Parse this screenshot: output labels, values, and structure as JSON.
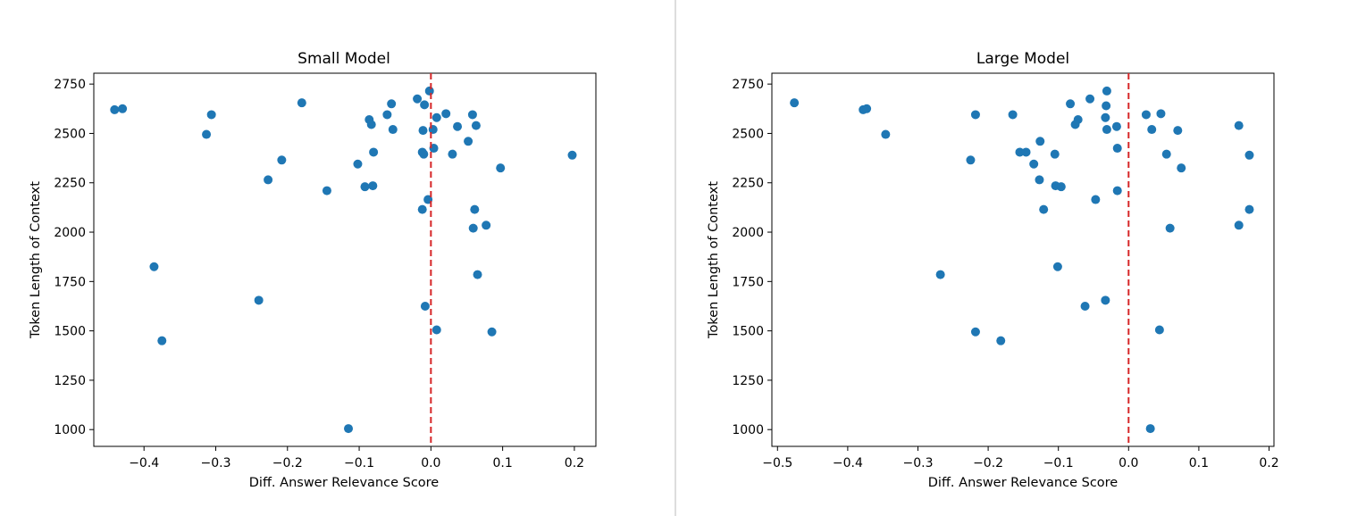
{
  "chart_data": [
    {
      "type": "scatter",
      "title": "Small Model",
      "xlabel": "Diff. Answer Relevance Score",
      "ylabel": "Token Length of Context",
      "xlim": [
        -0.47,
        0.23
      ],
      "ylim": [
        915,
        2805
      ],
      "xticks": [
        -0.4,
        -0.3,
        -0.2,
        -0.1,
        0.0,
        0.1,
        0.2
      ],
      "xtick_labels": [
        "−0.4",
        "−0.3",
        "−0.2",
        "−0.1",
        "0.0",
        "0.1",
        "0.2"
      ],
      "yticks": [
        1000,
        1250,
        1500,
        1750,
        2000,
        2250,
        2500,
        2750
      ],
      "ytick_labels": [
        "1000",
        "1250",
        "1500",
        "1750",
        "2000",
        "2250",
        "2500",
        "2750"
      ],
      "grid": false,
      "marker_color": "#1f77b4",
      "reference_line": {
        "x": 0,
        "color": "#d62728",
        "style": "dashed"
      },
      "points": [
        {
          "x": -0.441,
          "y": 2620
        },
        {
          "x": -0.43,
          "y": 2625
        },
        {
          "x": -0.306,
          "y": 2595
        },
        {
          "x": -0.313,
          "y": 2495
        },
        {
          "x": -0.18,
          "y": 2655
        },
        {
          "x": -0.208,
          "y": 2365
        },
        {
          "x": -0.227,
          "y": 2265
        },
        {
          "x": -0.145,
          "y": 2210
        },
        {
          "x": -0.386,
          "y": 1825
        },
        {
          "x": -0.375,
          "y": 1450
        },
        {
          "x": -0.24,
          "y": 1655
        },
        {
          "x": -0.115,
          "y": 1005
        },
        {
          "x": -0.102,
          "y": 2345
        },
        {
          "x": -0.092,
          "y": 2230
        },
        {
          "x": -0.081,
          "y": 2235
        },
        {
          "x": -0.086,
          "y": 2570
        },
        {
          "x": -0.083,
          "y": 2545
        },
        {
          "x": -0.08,
          "y": 2405
        },
        {
          "x": -0.061,
          "y": 2595
        },
        {
          "x": -0.055,
          "y": 2650
        },
        {
          "x": -0.053,
          "y": 2520
        },
        {
          "x": -0.019,
          "y": 2675
        },
        {
          "x": -0.009,
          "y": 2645
        },
        {
          "x": -0.002,
          "y": 2715
        },
        {
          "x": -0.011,
          "y": 2515
        },
        {
          "x": 0.003,
          "y": 2520
        },
        {
          "x": -0.012,
          "y": 2405
        },
        {
          "x": -0.01,
          "y": 2395
        },
        {
          "x": 0.004,
          "y": 2425
        },
        {
          "x": -0.004,
          "y": 2165
        },
        {
          "x": -0.012,
          "y": 2115
        },
        {
          "x": 0.008,
          "y": 2580
        },
        {
          "x": 0.021,
          "y": 2600
        },
        {
          "x": 0.037,
          "y": 2535
        },
        {
          "x": 0.058,
          "y": 2595
        },
        {
          "x": 0.063,
          "y": 2540
        },
        {
          "x": 0.052,
          "y": 2460
        },
        {
          "x": 0.03,
          "y": 2395
        },
        {
          "x": 0.097,
          "y": 2325
        },
        {
          "x": 0.197,
          "y": 2390
        },
        {
          "x": 0.061,
          "y": 2115
        },
        {
          "x": 0.059,
          "y": 2020
        },
        {
          "x": 0.077,
          "y": 2035
        },
        {
          "x": 0.065,
          "y": 1785
        },
        {
          "x": -0.008,
          "y": 1625
        },
        {
          "x": 0.008,
          "y": 1505
        },
        {
          "x": 0.085,
          "y": 1495
        }
      ]
    },
    {
      "type": "scatter",
      "title": "Large Model",
      "xlabel": "Diff. Answer Relevance Score",
      "ylabel": "Token Length of Context",
      "xlim": [
        -0.508,
        0.207
      ],
      "ylim": [
        915,
        2805
      ],
      "xticks": [
        -0.5,
        -0.4,
        -0.3,
        -0.2,
        -0.1,
        0.0,
        0.1,
        0.2
      ],
      "xtick_labels": [
        "−0.5",
        "−0.4",
        "−0.3",
        "−0.2",
        "−0.1",
        "0.0",
        "0.1",
        "0.2"
      ],
      "yticks": [
        1000,
        1250,
        1500,
        1750,
        2000,
        2250,
        2500,
        2750
      ],
      "ytick_labels": [
        "1000",
        "1250",
        "1500",
        "1750",
        "2000",
        "2250",
        "2500",
        "2750"
      ],
      "grid": false,
      "marker_color": "#1f77b4",
      "reference_line": {
        "x": 0,
        "color": "#d62728",
        "style": "dashed"
      },
      "points": [
        {
          "x": -0.476,
          "y": 2655
        },
        {
          "x": -0.378,
          "y": 2620
        },
        {
          "x": -0.373,
          "y": 2625
        },
        {
          "x": -0.346,
          "y": 2495
        },
        {
          "x": -0.218,
          "y": 2595
        },
        {
          "x": -0.165,
          "y": 2595
        },
        {
          "x": -0.225,
          "y": 2365
        },
        {
          "x": -0.268,
          "y": 1785
        },
        {
          "x": -0.218,
          "y": 1495
        },
        {
          "x": -0.182,
          "y": 1450
        },
        {
          "x": -0.155,
          "y": 2405
        },
        {
          "x": -0.146,
          "y": 2405
        },
        {
          "x": -0.135,
          "y": 2345
        },
        {
          "x": -0.126,
          "y": 2460
        },
        {
          "x": -0.127,
          "y": 2265
        },
        {
          "x": -0.121,
          "y": 2115
        },
        {
          "x": -0.105,
          "y": 2395
        },
        {
          "x": -0.104,
          "y": 2235
        },
        {
          "x": -0.096,
          "y": 2230
        },
        {
          "x": -0.101,
          "y": 1825
        },
        {
          "x": -0.083,
          "y": 2650
        },
        {
          "x": -0.072,
          "y": 2570
        },
        {
          "x": -0.076,
          "y": 2545
        },
        {
          "x": -0.055,
          "y": 2675
        },
        {
          "x": -0.031,
          "y": 2715
        },
        {
          "x": -0.032,
          "y": 2640
        },
        {
          "x": -0.033,
          "y": 2580
        },
        {
          "x": -0.031,
          "y": 2520
        },
        {
          "x": -0.017,
          "y": 2535
        },
        {
          "x": -0.016,
          "y": 2425
        },
        {
          "x": -0.016,
          "y": 2210
        },
        {
          "x": -0.047,
          "y": 2165
        },
        {
          "x": -0.062,
          "y": 1625
        },
        {
          "x": -0.033,
          "y": 1655
        },
        {
          "x": 0.025,
          "y": 2595
        },
        {
          "x": 0.046,
          "y": 2600
        },
        {
          "x": 0.033,
          "y": 2520
        },
        {
          "x": 0.07,
          "y": 2515
        },
        {
          "x": 0.054,
          "y": 2395
        },
        {
          "x": 0.075,
          "y": 2325
        },
        {
          "x": 0.157,
          "y": 2540
        },
        {
          "x": 0.172,
          "y": 2390
        },
        {
          "x": 0.172,
          "y": 2115
        },
        {
          "x": 0.157,
          "y": 2035
        },
        {
          "x": 0.059,
          "y": 2020
        },
        {
          "x": 0.044,
          "y": 1505
        },
        {
          "x": 0.031,
          "y": 1005
        }
      ]
    }
  ]
}
